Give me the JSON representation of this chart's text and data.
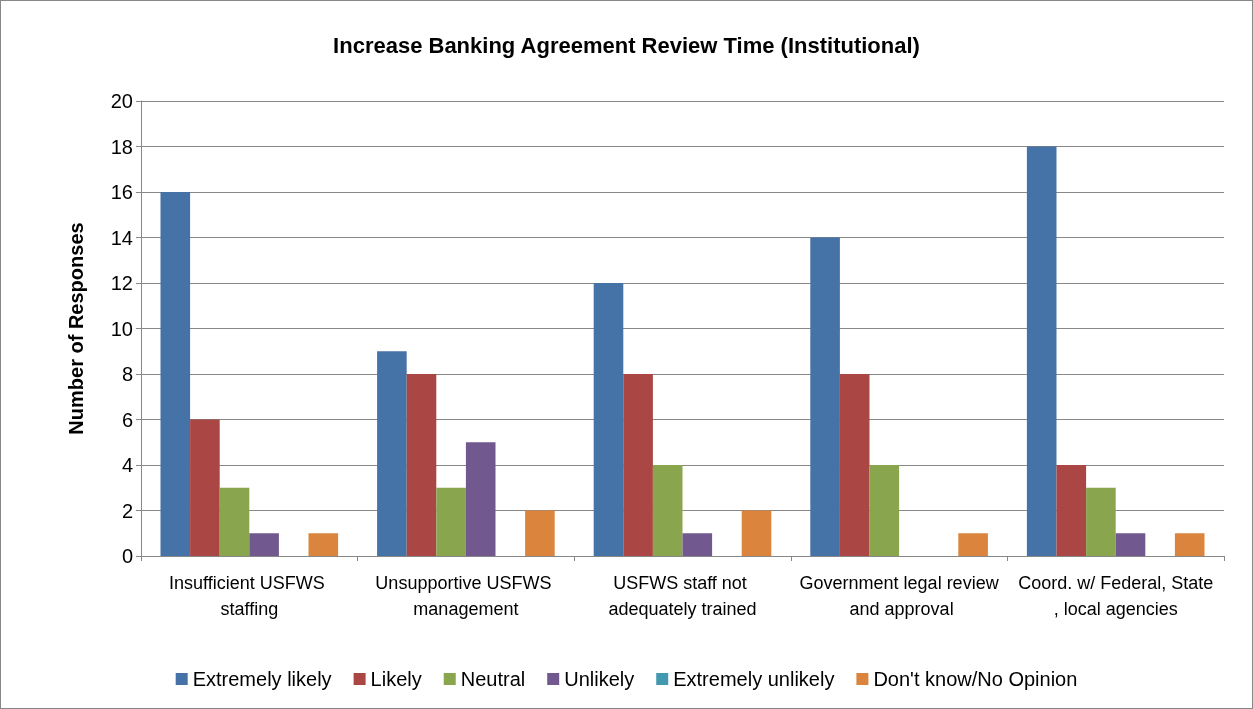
{
  "chart_data": {
    "type": "bar",
    "title": "Increase Banking Agreement Review Time (Institutional)",
    "ylabel": "Number of Responses",
    "categories": [
      "Insufficient USFWS staffing",
      "Unsupportive USFWS management",
      "USFWS staff not adequately trained",
      "Government legal review and approval",
      "Coord. w/ Federal, State, local agencies"
    ],
    "series": [
      {
        "name": "Extremely likely",
        "color": "#4572a7",
        "values": [
          16,
          9,
          12,
          14,
          18
        ]
      },
      {
        "name": "Likely",
        "color": "#aa4643",
        "values": [
          6,
          8,
          8,
          8,
          4
        ]
      },
      {
        "name": "Neutral",
        "color": "#89a54e",
        "values": [
          3,
          3,
          4,
          4,
          3
        ]
      },
      {
        "name": "Unlikely",
        "color": "#71588f",
        "values": [
          1,
          5,
          1,
          0,
          1
        ]
      },
      {
        "name": "Extremely unlikely",
        "color": "#4198af",
        "values": [
          0,
          0,
          0,
          0,
          0
        ]
      },
      {
        "name": "Don't know/No Opinion",
        "color": "#db843d",
        "values": [
          1,
          2,
          2,
          1,
          1
        ]
      }
    ],
    "ylim": [
      0,
      20
    ],
    "yticks": [
      0,
      2,
      4,
      6,
      8,
      10,
      12,
      14,
      16,
      18,
      20
    ],
    "grid": "y",
    "legend": "bottom"
  }
}
